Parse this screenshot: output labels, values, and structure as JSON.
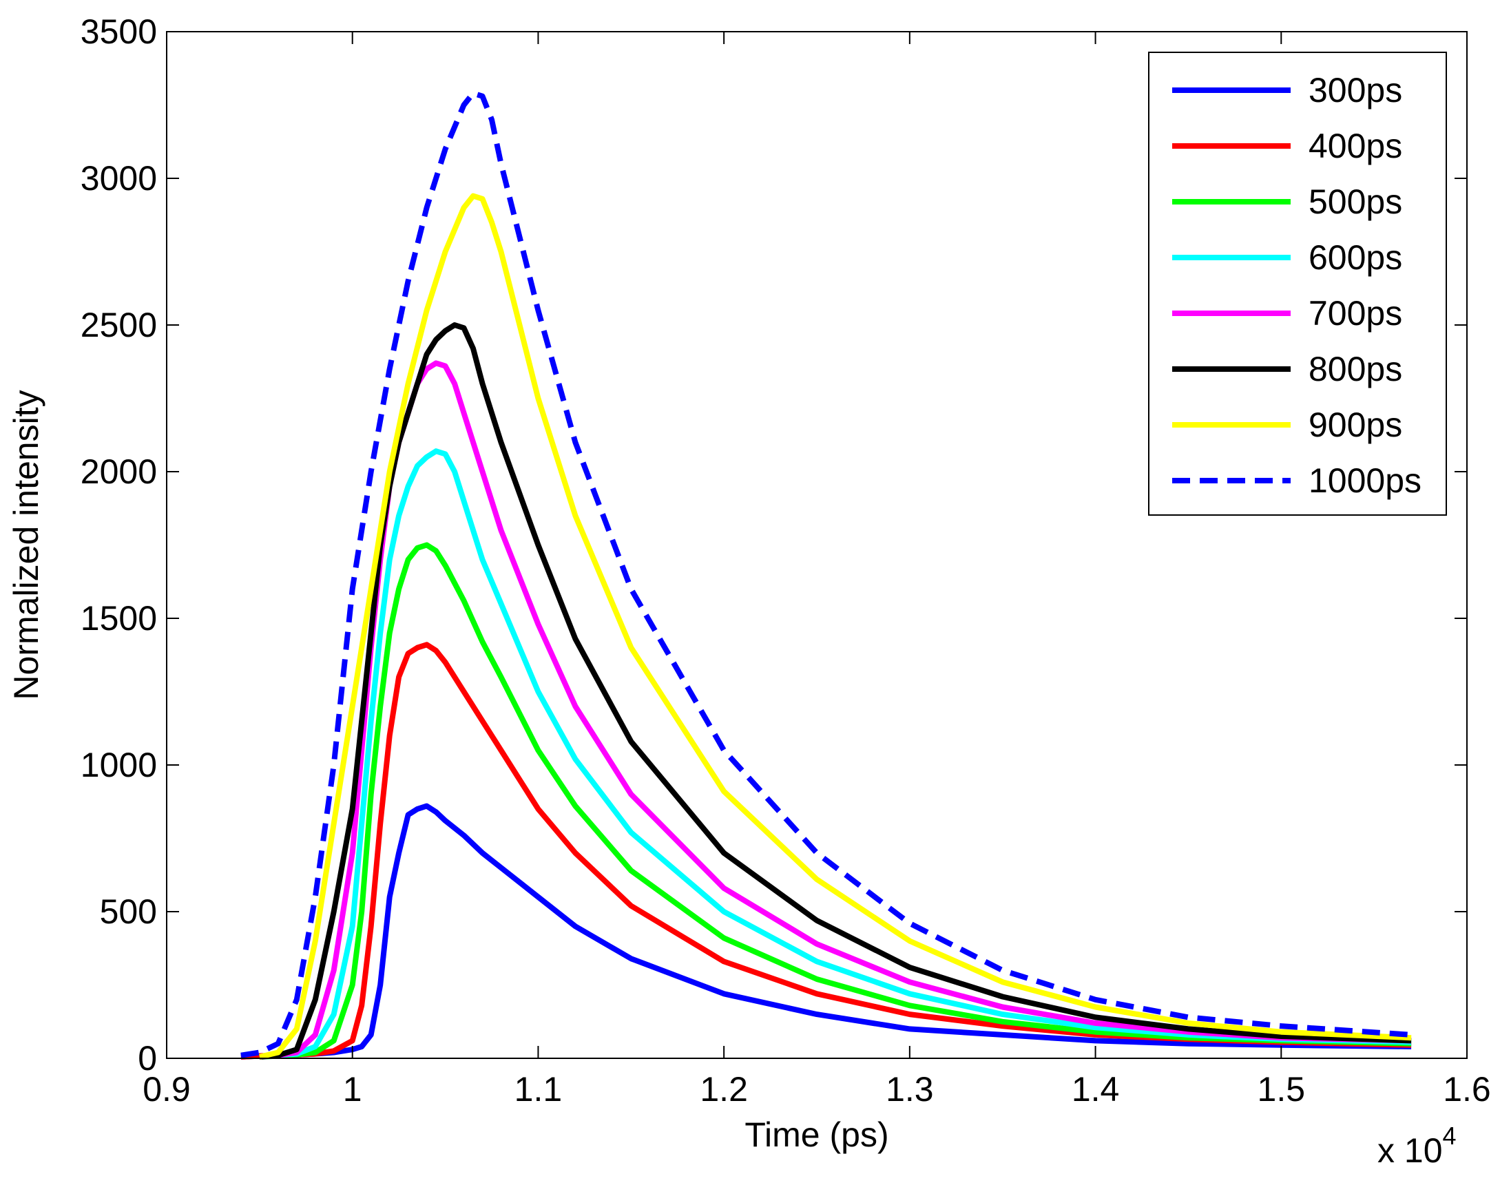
{
  "chart_data": {
    "type": "line",
    "title": "",
    "xlabel": "Time (ps)",
    "ylabel": "Normalized intensity",
    "x_multiplier": "x 10",
    "x_multiplier_exponent": "4",
    "xlim": [
      0.9,
      1.6
    ],
    "ylim": [
      0,
      3500
    ],
    "xticks": [
      0.9,
      1.0,
      1.1,
      1.2,
      1.3,
      1.4,
      1.5,
      1.6
    ],
    "xtick_labels": [
      "0.9",
      "1",
      "1.1",
      "1.2",
      "1.3",
      "1.4",
      "1.5",
      "1.6"
    ],
    "yticks": [
      0,
      500,
      1000,
      1500,
      2000,
      2500,
      3000,
      3500
    ],
    "ytick_labels": [
      "0",
      "500",
      "1000",
      "1500",
      "2000",
      "2500",
      "3000",
      "3500"
    ],
    "grid": false,
    "legend_position": "top-right",
    "series": [
      {
        "name": "300ps",
        "color": "#0000ff",
        "dash": "solid",
        "x": [
          0.94,
          0.95,
          0.96,
          0.97,
          0.98,
          0.99,
          1.0,
          1.005,
          1.01,
          1.015,
          1.02,
          1.025,
          1.03,
          1.035,
          1.04,
          1.045,
          1.05,
          1.06,
          1.07,
          1.08,
          1.1,
          1.12,
          1.15,
          1.2,
          1.25,
          1.3,
          1.35,
          1.4,
          1.45,
          1.5,
          1.57
        ],
        "y": [
          5,
          8,
          10,
          12,
          15,
          20,
          30,
          40,
          80,
          250,
          550,
          700,
          830,
          850,
          860,
          840,
          810,
          760,
          700,
          650,
          550,
          450,
          340,
          220,
          150,
          100,
          80,
          60,
          50,
          45,
          40
        ]
      },
      {
        "name": "400ps",
        "color": "#ff0000",
        "dash": "solid",
        "x": [
          0.94,
          0.95,
          0.96,
          0.97,
          0.98,
          0.99,
          1.0,
          1.005,
          1.01,
          1.015,
          1.02,
          1.025,
          1.03,
          1.035,
          1.04,
          1.045,
          1.05,
          1.06,
          1.07,
          1.08,
          1.1,
          1.12,
          1.15,
          1.2,
          1.25,
          1.3,
          1.35,
          1.4,
          1.45,
          1.5,
          1.57
        ],
        "y": [
          5,
          8,
          10,
          12,
          15,
          25,
          60,
          180,
          450,
          800,
          1100,
          1300,
          1380,
          1400,
          1410,
          1390,
          1350,
          1250,
          1150,
          1050,
          850,
          700,
          520,
          330,
          220,
          150,
          110,
          80,
          65,
          55,
          45
        ]
      },
      {
        "name": "500ps",
        "color": "#00ff00",
        "dash": "solid",
        "x": [
          0.95,
          0.96,
          0.97,
          0.98,
          0.99,
          1.0,
          1.005,
          1.01,
          1.015,
          1.02,
          1.025,
          1.03,
          1.035,
          1.04,
          1.045,
          1.05,
          1.06,
          1.07,
          1.08,
          1.1,
          1.12,
          1.15,
          1.2,
          1.25,
          1.3,
          1.35,
          1.4,
          1.45,
          1.5,
          1.57
        ],
        "y": [
          5,
          8,
          12,
          20,
          60,
          250,
          500,
          900,
          1200,
          1450,
          1600,
          1700,
          1740,
          1750,
          1730,
          1680,
          1560,
          1420,
          1300,
          1050,
          860,
          640,
          410,
          270,
          180,
          125,
          90,
          70,
          60,
          50
        ]
      },
      {
        "name": "600ps",
        "color": "#00ffff",
        "dash": "solid",
        "x": [
          0.95,
          0.96,
          0.97,
          0.98,
          0.99,
          1.0,
          1.005,
          1.01,
          1.015,
          1.02,
          1.025,
          1.03,
          1.035,
          1.04,
          1.045,
          1.05,
          1.055,
          1.06,
          1.07,
          1.08,
          1.1,
          1.12,
          1.15,
          1.2,
          1.25,
          1.3,
          1.35,
          1.4,
          1.45,
          1.5,
          1.57
        ],
        "y": [
          5,
          10,
          15,
          40,
          150,
          450,
          800,
          1150,
          1450,
          1700,
          1850,
          1950,
          2020,
          2050,
          2070,
          2060,
          2000,
          1900,
          1700,
          1550,
          1250,
          1020,
          770,
          500,
          330,
          220,
          150,
          105,
          80,
          65,
          55
        ]
      },
      {
        "name": "700ps",
        "color": "#ff00ff",
        "dash": "solid",
        "x": [
          0.95,
          0.96,
          0.97,
          0.98,
          0.99,
          1.0,
          1.005,
          1.01,
          1.015,
          1.02,
          1.025,
          1.03,
          1.035,
          1.04,
          1.045,
          1.05,
          1.055,
          1.06,
          1.07,
          1.08,
          1.1,
          1.12,
          1.15,
          1.2,
          1.25,
          1.3,
          1.35,
          1.4,
          1.45,
          1.5,
          1.57
        ],
        "y": [
          5,
          10,
          20,
          80,
          300,
          700,
          1050,
          1400,
          1700,
          1950,
          2100,
          2200,
          2300,
          2350,
          2370,
          2360,
          2300,
          2200,
          2000,
          1800,
          1480,
          1200,
          900,
          580,
          390,
          260,
          175,
          120,
          90,
          70,
          60
        ]
      },
      {
        "name": "800ps",
        "color": "#000000",
        "dash": "solid",
        "x": [
          0.95,
          0.96,
          0.97,
          0.98,
          0.99,
          1.0,
          1.005,
          1.01,
          1.015,
          1.02,
          1.025,
          1.03,
          1.035,
          1.04,
          1.045,
          1.05,
          1.055,
          1.06,
          1.065,
          1.07,
          1.08,
          1.1,
          1.12,
          1.15,
          1.2,
          1.25,
          1.3,
          1.35,
          1.4,
          1.45,
          1.5,
          1.57
        ],
        "y": [
          5,
          10,
          30,
          200,
          500,
          850,
          1150,
          1450,
          1750,
          1950,
          2100,
          2200,
          2300,
          2400,
          2450,
          2480,
          2500,
          2490,
          2420,
          2300,
          2100,
          1750,
          1430,
          1080,
          700,
          470,
          310,
          210,
          140,
          100,
          75,
          60
        ]
      },
      {
        "name": "900ps",
        "color": "#ffff00",
        "dash": "solid",
        "x": [
          0.95,
          0.96,
          0.97,
          0.98,
          0.99,
          1.0,
          1.01,
          1.02,
          1.03,
          1.04,
          1.05,
          1.06,
          1.065,
          1.07,
          1.075,
          1.08,
          1.09,
          1.1,
          1.12,
          1.15,
          1.2,
          1.25,
          1.3,
          1.35,
          1.4,
          1.45,
          1.5,
          1.57
        ],
        "y": [
          5,
          20,
          100,
          400,
          800,
          1200,
          1600,
          2000,
          2300,
          2550,
          2750,
          2900,
          2940,
          2930,
          2850,
          2750,
          2500,
          2250,
          1850,
          1400,
          910,
          610,
          400,
          260,
          175,
          120,
          90,
          70
        ]
      },
      {
        "name": "1000ps",
        "color": "#0000ff",
        "dash": "dashed",
        "x": [
          0.94,
          0.95,
          0.96,
          0.97,
          0.98,
          0.99,
          1.0,
          1.01,
          1.02,
          1.03,
          1.04,
          1.05,
          1.06,
          1.065,
          1.07,
          1.075,
          1.08,
          1.09,
          1.1,
          1.12,
          1.15,
          1.2,
          1.25,
          1.3,
          1.35,
          1.4,
          1.45,
          1.5,
          1.57
        ],
        "y": [
          10,
          20,
          50,
          200,
          550,
          1000,
          1600,
          2000,
          2350,
          2650,
          2900,
          3100,
          3250,
          3290,
          3280,
          3200,
          3050,
          2800,
          2550,
          2100,
          1600,
          1050,
          700,
          460,
          300,
          200,
          140,
          110,
          80
        ]
      }
    ]
  }
}
